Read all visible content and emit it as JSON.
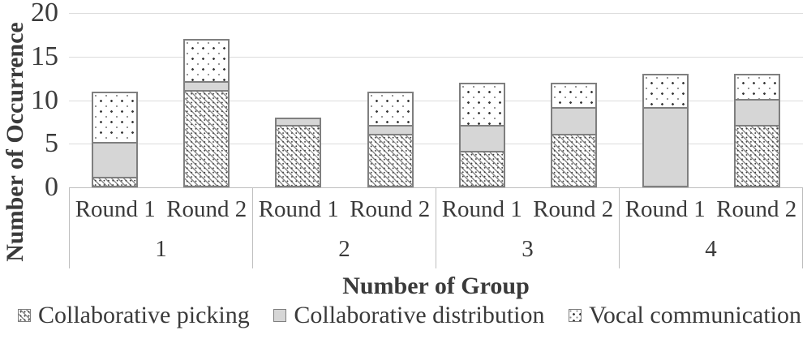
{
  "chart_data": {
    "type": "bar",
    "stacked": true,
    "title": "",
    "ylabel": "Number of Occurrence",
    "xlabel": "Number of Group",
    "ylim": [
      0,
      20
    ],
    "yticks": [
      20,
      15,
      10,
      5,
      0
    ],
    "grid": true,
    "legend_position": "bottom",
    "series": [
      {
        "key": "picking",
        "name": "Collaborative picking",
        "pattern": "diagonal-hatch"
      },
      {
        "key": "distribution",
        "name": "Collaborative distribution",
        "pattern": "solid-gray",
        "color": "#d6d6d6"
      },
      {
        "key": "vocal",
        "name": "Vocal communication",
        "pattern": "dots"
      }
    ],
    "groups": [
      {
        "label": "1",
        "rounds": [
          {
            "label": "Round 1",
            "values": {
              "picking": 1,
              "distribution": 4,
              "vocal": 6
            },
            "total": 11
          },
          {
            "label": "Round 2",
            "values": {
              "picking": 11,
              "distribution": 1,
              "vocal": 5
            },
            "total": 17
          }
        ]
      },
      {
        "label": "2",
        "rounds": [
          {
            "label": "Round 1",
            "values": {
              "picking": 7,
              "distribution": 1,
              "vocal": 0
            },
            "total": 8
          },
          {
            "label": "Round 2",
            "values": {
              "picking": 6,
              "distribution": 1,
              "vocal": 4
            },
            "total": 11
          }
        ]
      },
      {
        "label": "3",
        "rounds": [
          {
            "label": "Round 1",
            "values": {
              "picking": 4,
              "distribution": 3,
              "vocal": 5
            },
            "total": 12
          },
          {
            "label": "Round 2",
            "values": {
              "picking": 6,
              "distribution": 3,
              "vocal": 3
            },
            "total": 12
          }
        ]
      },
      {
        "label": "4",
        "rounds": [
          {
            "label": "Round 1",
            "values": {
              "picking": 0,
              "distribution": 9,
              "vocal": 4
            },
            "total": 13
          },
          {
            "label": "Round 2",
            "values": {
              "picking": 7,
              "distribution": 3,
              "vocal": 3
            },
            "total": 13
          }
        ]
      }
    ]
  },
  "colors": {
    "bar_border": "#7f7f7f",
    "distribution_fill": "#d6d6d6",
    "gridline": "#dcdcdc",
    "axis_line": "#bfbfbf",
    "text": "#3a3a3a"
  }
}
